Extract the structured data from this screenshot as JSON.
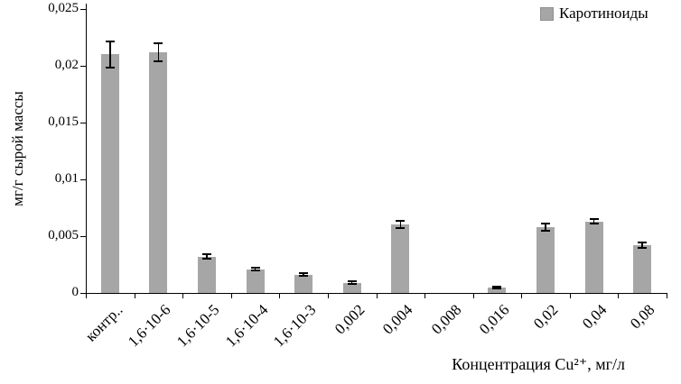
{
  "legend": {
    "label": "Каротиноиды",
    "color": "#a6a6a6"
  },
  "y_axis": {
    "label": "мг/г сырой массы"
  },
  "x_axis": {
    "label": "Концентрация Cu²⁺, мг/л"
  },
  "chart_data": {
    "type": "bar",
    "title": "",
    "categories": [
      "контр..",
      "1,6·10-6",
      "1,6·10-5",
      "1,6·10-4",
      "1,6·10-3",
      "0,002",
      "0,004",
      "0,008",
      "0,016",
      "0,02",
      "0,04",
      "0,08"
    ],
    "series": [
      {
        "name": "Каротиноиды",
        "values": [
          0.021,
          0.0212,
          0.0032,
          0.0021,
          0.0016,
          0.0009,
          0.006,
          0,
          0.0005,
          0.0058,
          0.0063,
          0.0042
        ],
        "errors": [
          0.0012,
          0.0009,
          0.0003,
          0.0002,
          0.0002,
          0.0002,
          0.0004,
          0,
          0.0001,
          0.0004,
          0.0003,
          0.0003
        ]
      }
    ],
    "xlabel": "Концентрация Cu²⁺, мг/л",
    "ylabel": "мг/г сырой массы",
    "ylim": [
      0,
      0.025
    ],
    "ytick_step": 0.005,
    "decimal_separator": ",",
    "bar_color": "#a6a6a6",
    "grid": false,
    "legend_position": "top-right"
  }
}
